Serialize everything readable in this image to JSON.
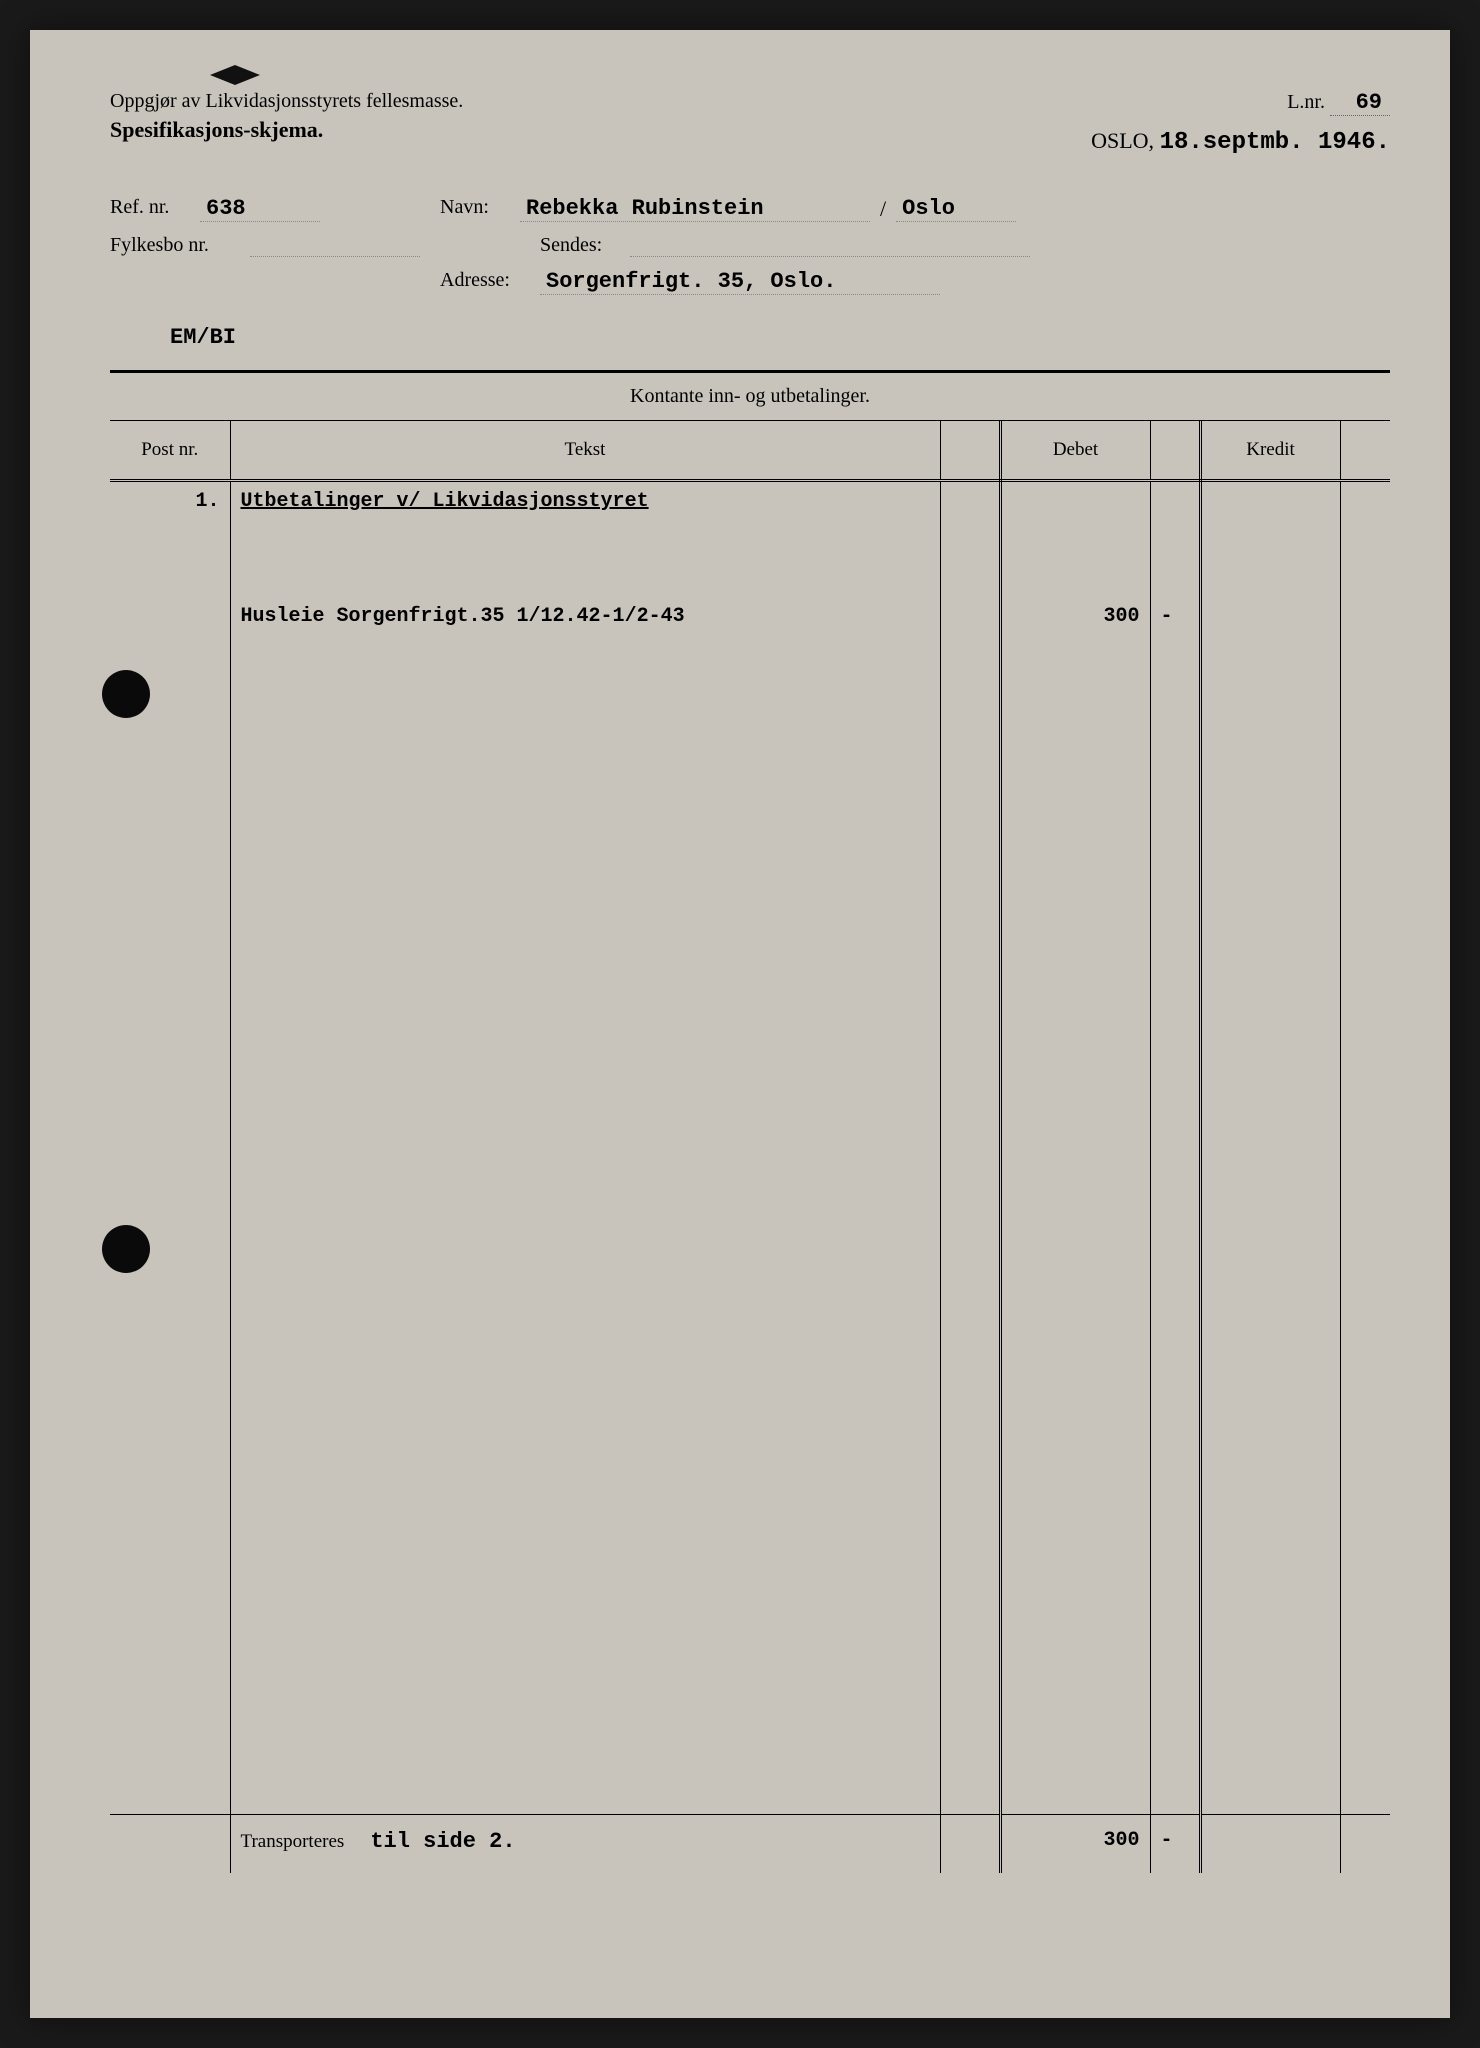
{
  "colors": {
    "page_bg": "#c8c4bc",
    "frame_bg": "#1a1a1a",
    "text": "#1a1a1a",
    "rule": "#000000",
    "dotted": "#888888"
  },
  "header": {
    "title_line1": "Oppgjør av Likvidasjonsstyrets fellesmasse.",
    "title_line2": "Spesifikasjons-skjema.",
    "lnr_label": "L.nr.",
    "lnr_value": "69",
    "city_label": "OSLO,",
    "date_typed": "18.septmb. 1946."
  },
  "fields": {
    "ref_label": "Ref. nr.",
    "ref_value": "638",
    "navn_label": "Navn:",
    "navn_value": "Rebekka Rubinstein",
    "navn_city": "Oslo",
    "fylkesbo_label": "Fylkesbo nr.",
    "fylkesbo_value": "",
    "sendes_label": "Sendes:",
    "sendes_value": "",
    "adresse_label": "Adresse:",
    "adresse_value": "Sorgenfrigt. 35, Oslo.",
    "em_code": "EM/BI"
  },
  "table": {
    "section_title": "Kontante inn- og utbetalinger.",
    "columns": {
      "post": "Post nr.",
      "tekst": "Tekst",
      "debet": "Debet",
      "kredit": "Kredit"
    },
    "rows": [
      {
        "post": "1.",
        "tekst": "Utbetalinger v/ Likvidasjonsstyret",
        "underlined": true,
        "debet": "",
        "debet_sub": "",
        "kredit": "",
        "kredit_sub": ""
      },
      {
        "post": "",
        "tekst": "",
        "debet": "",
        "debet_sub": "",
        "kredit": "",
        "kredit_sub": ""
      },
      {
        "post": "",
        "tekst": "Husleie Sorgenfrigt.35 1/12.42-1/2-43",
        "debet": "300",
        "debet_sub": "-",
        "kredit": "",
        "kredit_sub": ""
      },
      {
        "post": "",
        "tekst": "",
        "debet": "",
        "debet_sub": "",
        "kredit": "",
        "kredit_sub": ""
      },
      {
        "post": "",
        "tekst": "",
        "debet": "",
        "debet_sub": "",
        "kredit": "",
        "kredit_sub": ""
      },
      {
        "post": "",
        "tekst": "",
        "debet": "",
        "debet_sub": "",
        "kredit": "",
        "kredit_sub": ""
      },
      {
        "post": "",
        "tekst": "",
        "debet": "",
        "debet_sub": "",
        "kredit": "",
        "kredit_sub": ""
      },
      {
        "post": "",
        "tekst": "",
        "debet": "",
        "debet_sub": "",
        "kredit": "",
        "kredit_sub": ""
      },
      {
        "post": "",
        "tekst": "",
        "debet": "",
        "debet_sub": "",
        "kredit": "",
        "kredit_sub": ""
      },
      {
        "post": "",
        "tekst": "",
        "debet": "",
        "debet_sub": "",
        "kredit": "",
        "kredit_sub": ""
      },
      {
        "post": "",
        "tekst": "",
        "debet": "",
        "debet_sub": "",
        "kredit": "",
        "kredit_sub": ""
      },
      {
        "post": "",
        "tekst": "",
        "debet": "",
        "debet_sub": "",
        "kredit": "",
        "kredit_sub": ""
      },
      {
        "post": "",
        "tekst": "",
        "debet": "",
        "debet_sub": "",
        "kredit": "",
        "kredit_sub": ""
      },
      {
        "post": "",
        "tekst": "",
        "debet": "",
        "debet_sub": "",
        "kredit": "",
        "kredit_sub": ""
      },
      {
        "post": "",
        "tekst": "",
        "debet": "",
        "debet_sub": "",
        "kredit": "",
        "kredit_sub": ""
      },
      {
        "post": "",
        "tekst": "",
        "debet": "",
        "debet_sub": "",
        "kredit": "",
        "kredit_sub": ""
      },
      {
        "post": "",
        "tekst": "",
        "debet": "",
        "debet_sub": "",
        "kredit": "",
        "kredit_sub": ""
      },
      {
        "post": "",
        "tekst": "",
        "debet": "",
        "debet_sub": "",
        "kredit": "",
        "kredit_sub": ""
      },
      {
        "post": "",
        "tekst": "",
        "debet": "",
        "debet_sub": "",
        "kredit": "",
        "kredit_sub": ""
      },
      {
        "post": "",
        "tekst": "",
        "debet": "",
        "debet_sub": "",
        "kredit": "",
        "kredit_sub": ""
      },
      {
        "post": "",
        "tekst": "",
        "debet": "",
        "debet_sub": "",
        "kredit": "",
        "kredit_sub": ""
      },
      {
        "post": "",
        "tekst": "",
        "debet": "",
        "debet_sub": "",
        "kredit": "",
        "kredit_sub": ""
      },
      {
        "post": "",
        "tekst": "",
        "debet": "",
        "debet_sub": "",
        "kredit": "",
        "kredit_sub": ""
      }
    ],
    "transport_label": "Transporteres",
    "transport_typed": "til side 2.",
    "transport_debet": "300",
    "transport_debet_sub": "-"
  }
}
